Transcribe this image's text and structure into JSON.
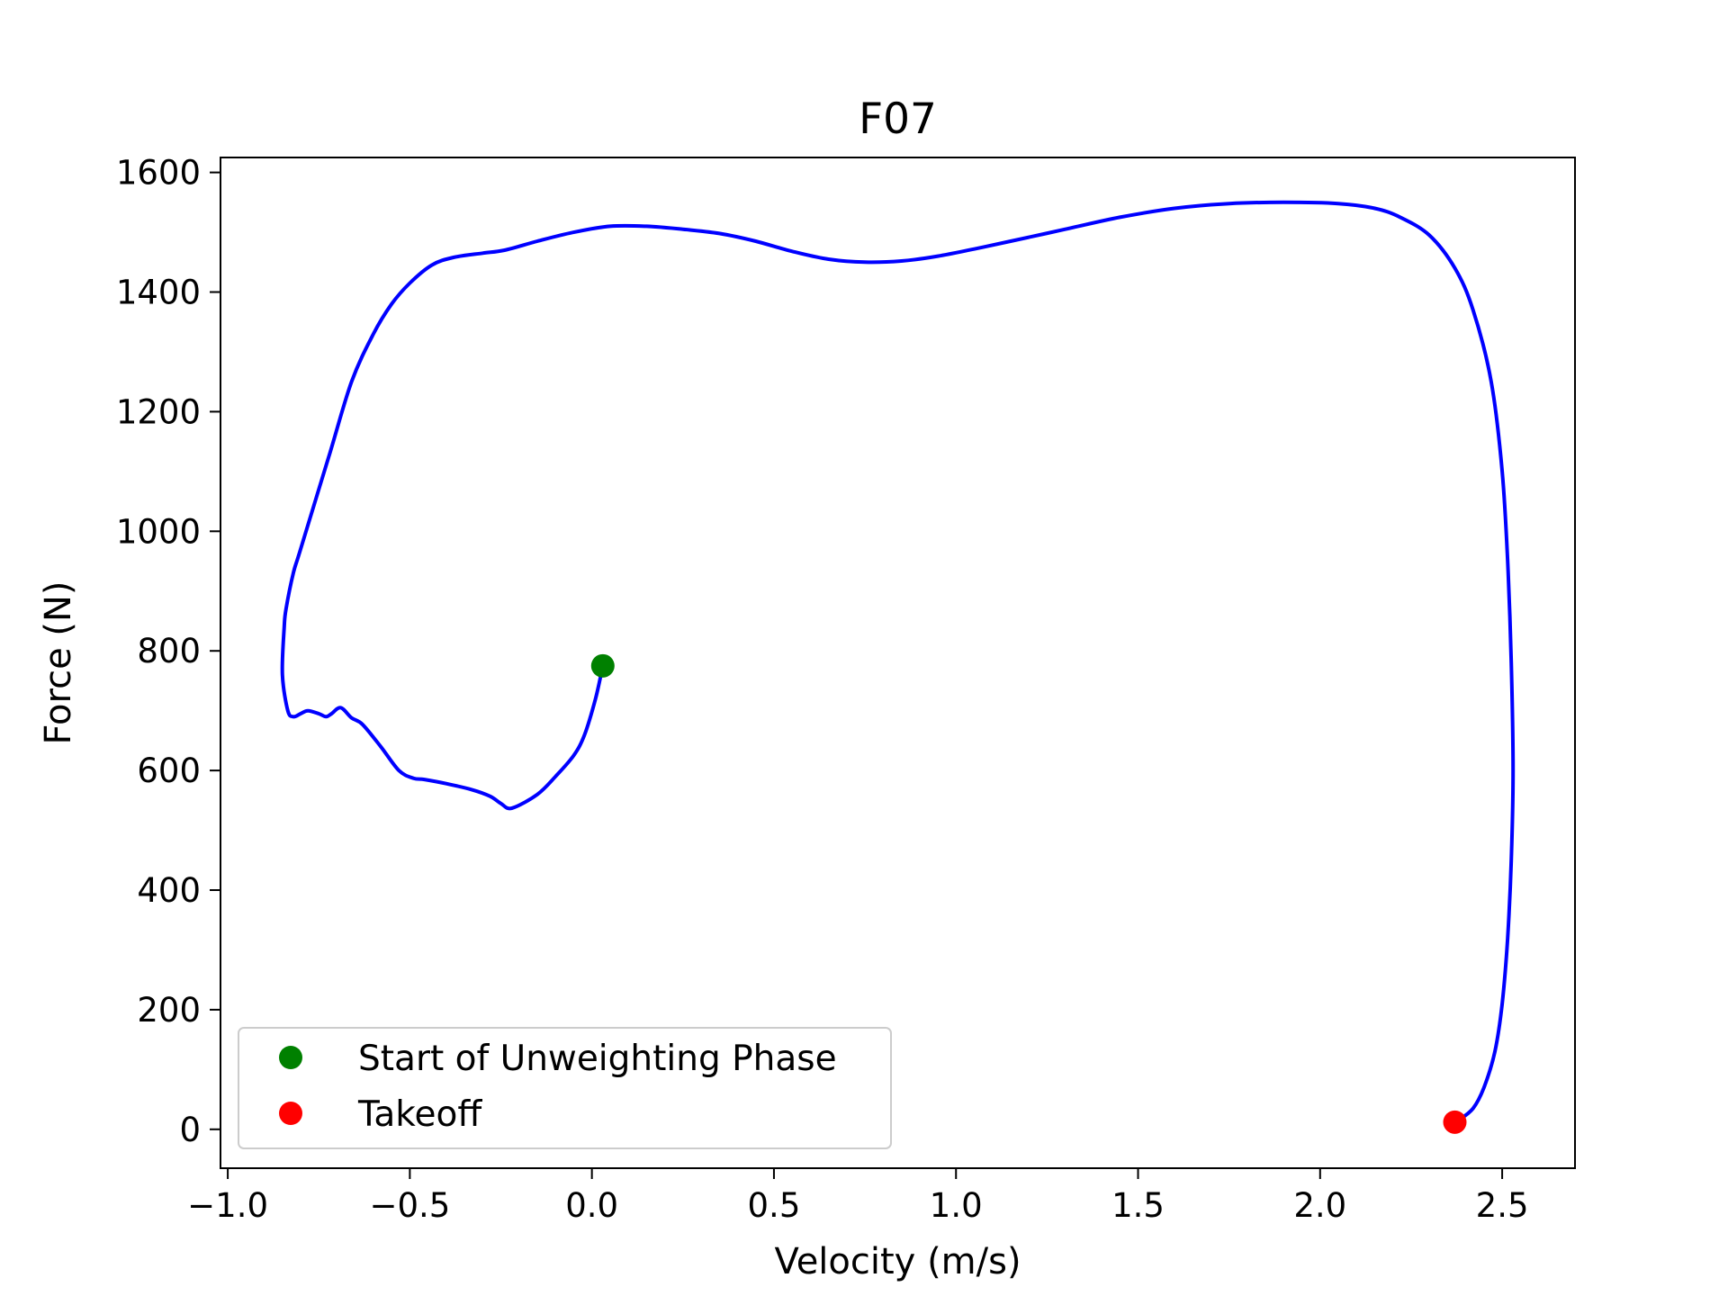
{
  "chart_data": {
    "type": "line",
    "title": "F07",
    "xlabel": "Velocity (m/s)",
    "ylabel": "Force (N)",
    "xlim": [
      -1.02,
      2.7
    ],
    "ylim": [
      -65,
      1625
    ],
    "xticks": [
      -1.0,
      -0.5,
      0.0,
      0.5,
      1.0,
      1.5,
      2.0,
      2.5
    ],
    "xtick_labels": [
      "−1.0",
      "−0.5",
      "0.0",
      "0.5",
      "1.0",
      "1.5",
      "2.0",
      "2.5"
    ],
    "yticks": [
      0,
      200,
      400,
      600,
      800,
      1000,
      1200,
      1400,
      1600
    ],
    "ytick_labels": [
      "0",
      "200",
      "400",
      "600",
      "800",
      "1000",
      "1200",
      "1400",
      "1600"
    ],
    "grid": false,
    "legend_position": "lower-left",
    "series": [
      {
        "kind": "line",
        "color": "#0000ff",
        "x": [
          0.03,
          0.01,
          -0.02,
          -0.05,
          -0.1,
          -0.15,
          -0.22,
          -0.25,
          -0.28,
          -0.33,
          -0.4,
          -0.46,
          -0.49,
          -0.53,
          -0.58,
          -0.63,
          -0.66,
          -0.69,
          -0.715,
          -0.73,
          -0.75,
          -0.78,
          -0.8,
          -0.82,
          -0.835,
          -0.85,
          -0.845,
          -0.84,
          -0.82,
          -0.8,
          -0.72,
          -0.66,
          -0.6,
          -0.55,
          -0.5,
          -0.44,
          -0.38,
          -0.3,
          -0.24,
          -0.15,
          -0.05,
          0.05,
          0.15,
          0.25,
          0.35,
          0.45,
          0.55,
          0.65,
          0.75,
          0.85,
          0.95,
          1.05,
          1.15,
          1.3,
          1.45,
          1.6,
          1.75,
          1.9,
          2.05,
          2.15,
          2.22,
          2.3,
          2.37,
          2.42,
          2.47,
          2.5,
          2.515,
          2.525,
          2.53,
          2.525,
          2.515,
          2.5,
          2.48,
          2.45,
          2.42,
          2.38,
          2.37
        ],
        "y": [
          775,
          720,
          660,
          625,
          590,
          560,
          537,
          545,
          557,
          568,
          578,
          585,
          587,
          600,
          640,
          677,
          688,
          705,
          695,
          690,
          695,
          700,
          695,
          690,
          700,
          760,
          840,
          870,
          930,
          970,
          1130,
          1250,
          1330,
          1380,
          1415,
          1445,
          1458,
          1465,
          1470,
          1485,
          1500,
          1510,
          1510,
          1505,
          1498,
          1485,
          1468,
          1455,
          1450,
          1452,
          1460,
          1472,
          1485,
          1505,
          1525,
          1540,
          1548,
          1550,
          1548,
          1540,
          1525,
          1495,
          1440,
          1370,
          1250,
          1100,
          950,
          780,
          600,
          450,
          320,
          210,
          130,
          70,
          35,
          15,
          12
        ]
      },
      {
        "kind": "point",
        "name": "Start of Unweighting Phase",
        "color": "#008000",
        "x": [
          0.03
        ],
        "y": [
          775
        ]
      },
      {
        "kind": "point",
        "name": "Takeoff",
        "color": "#ff0000",
        "x": [
          2.37
        ],
        "y": [
          12
        ]
      }
    ]
  }
}
